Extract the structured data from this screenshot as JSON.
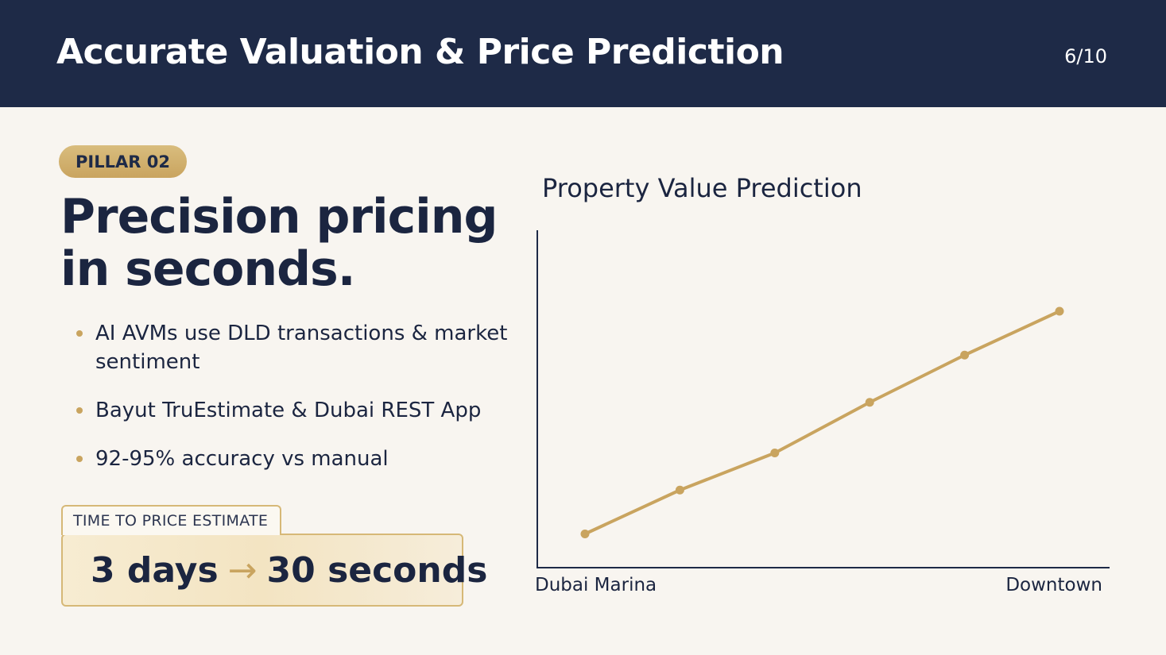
{
  "header": {
    "title": "Accurate Valuation & Price Prediction",
    "page_counter": "6/10"
  },
  "pillar": {
    "badge": "PILLAR 02",
    "headline": "Precision pricing in seconds."
  },
  "bullets": [
    "AI AVMs use DLD transactions & market sentiment",
    "Bayut TruEstimate & Dubai REST App",
    "92-95% accuracy vs manual"
  ],
  "time_estimate": {
    "tag": "TIME TO PRICE ESTIMATE",
    "from": "3 days",
    "arrow": "→",
    "to": "30 seconds"
  },
  "colors": {
    "navy": "#1e2a47",
    "gold": "#c9a45f",
    "background": "#f8f5f0"
  },
  "chart_data": {
    "type": "line",
    "title": "Property Value Prediction",
    "x_tick_labels": [
      "Dubai Marina",
      "Downtown"
    ],
    "x": [
      1,
      2,
      3,
      4,
      5,
      6
    ],
    "series": [
      {
        "values": [
          1.0,
          2.3,
          3.4,
          4.9,
          6.3,
          7.6
        ]
      }
    ],
    "ylim": [
      0,
      10
    ],
    "xlabel": "",
    "ylabel": "",
    "grid": false,
    "line_color": "#c9a45f"
  }
}
